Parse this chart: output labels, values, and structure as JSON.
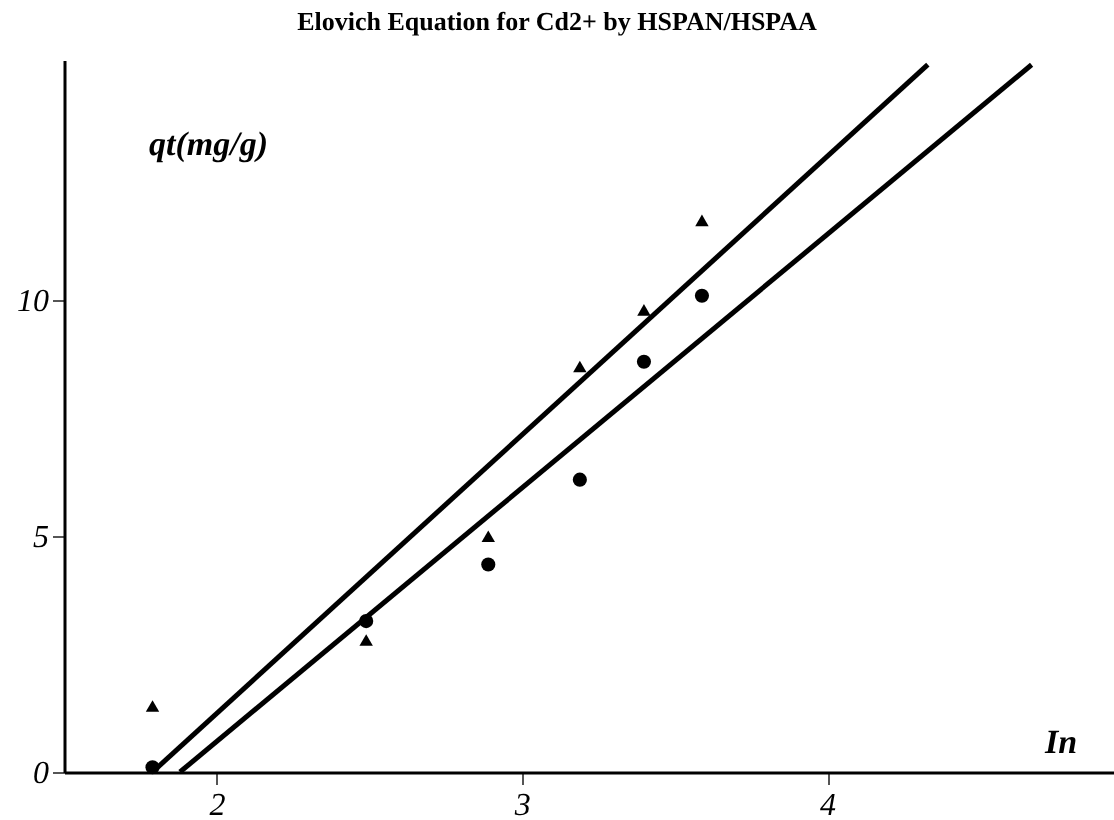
{
  "chart_data": {
    "type": "scatter",
    "title": "Elovich Equation for Cd2+ by HSPAN/HSPAA",
    "xlabel": "In",
    "ylabel": "qt(mg/g)",
    "xlim": [
      1.5,
      4.94
    ],
    "ylim": [
      0,
      15.1
    ],
    "xticks": [
      2,
      3,
      4
    ],
    "yticks": [
      0,
      5,
      10
    ],
    "grid": false,
    "series": [
      {
        "marker": "triangle",
        "color": "#000000",
        "x": [
          1.79,
          2.49,
          2.89,
          3.19,
          3.4,
          3.59
        ],
        "values": [
          1.4,
          2.8,
          5.0,
          8.6,
          9.8,
          11.7
        ]
      },
      {
        "marker": "circle",
        "color": "#000000",
        "x": [
          1.79,
          2.49,
          2.89,
          3.19,
          3.4,
          3.59
        ],
        "values": [
          0.1,
          3.2,
          4.4,
          6.2,
          8.7,
          10.1
        ]
      },
      {
        "type": "line",
        "marker": "none",
        "line_style": "solid",
        "color": "#000000",
        "x": [
          1.79,
          4.33
        ],
        "values": [
          0,
          15.0
        ]
      },
      {
        "type": "line",
        "marker": "none",
        "line_style": "solid",
        "color": "#000000",
        "x": [
          1.88,
          4.67
        ],
        "values": [
          0,
          15.0
        ]
      }
    ]
  }
}
